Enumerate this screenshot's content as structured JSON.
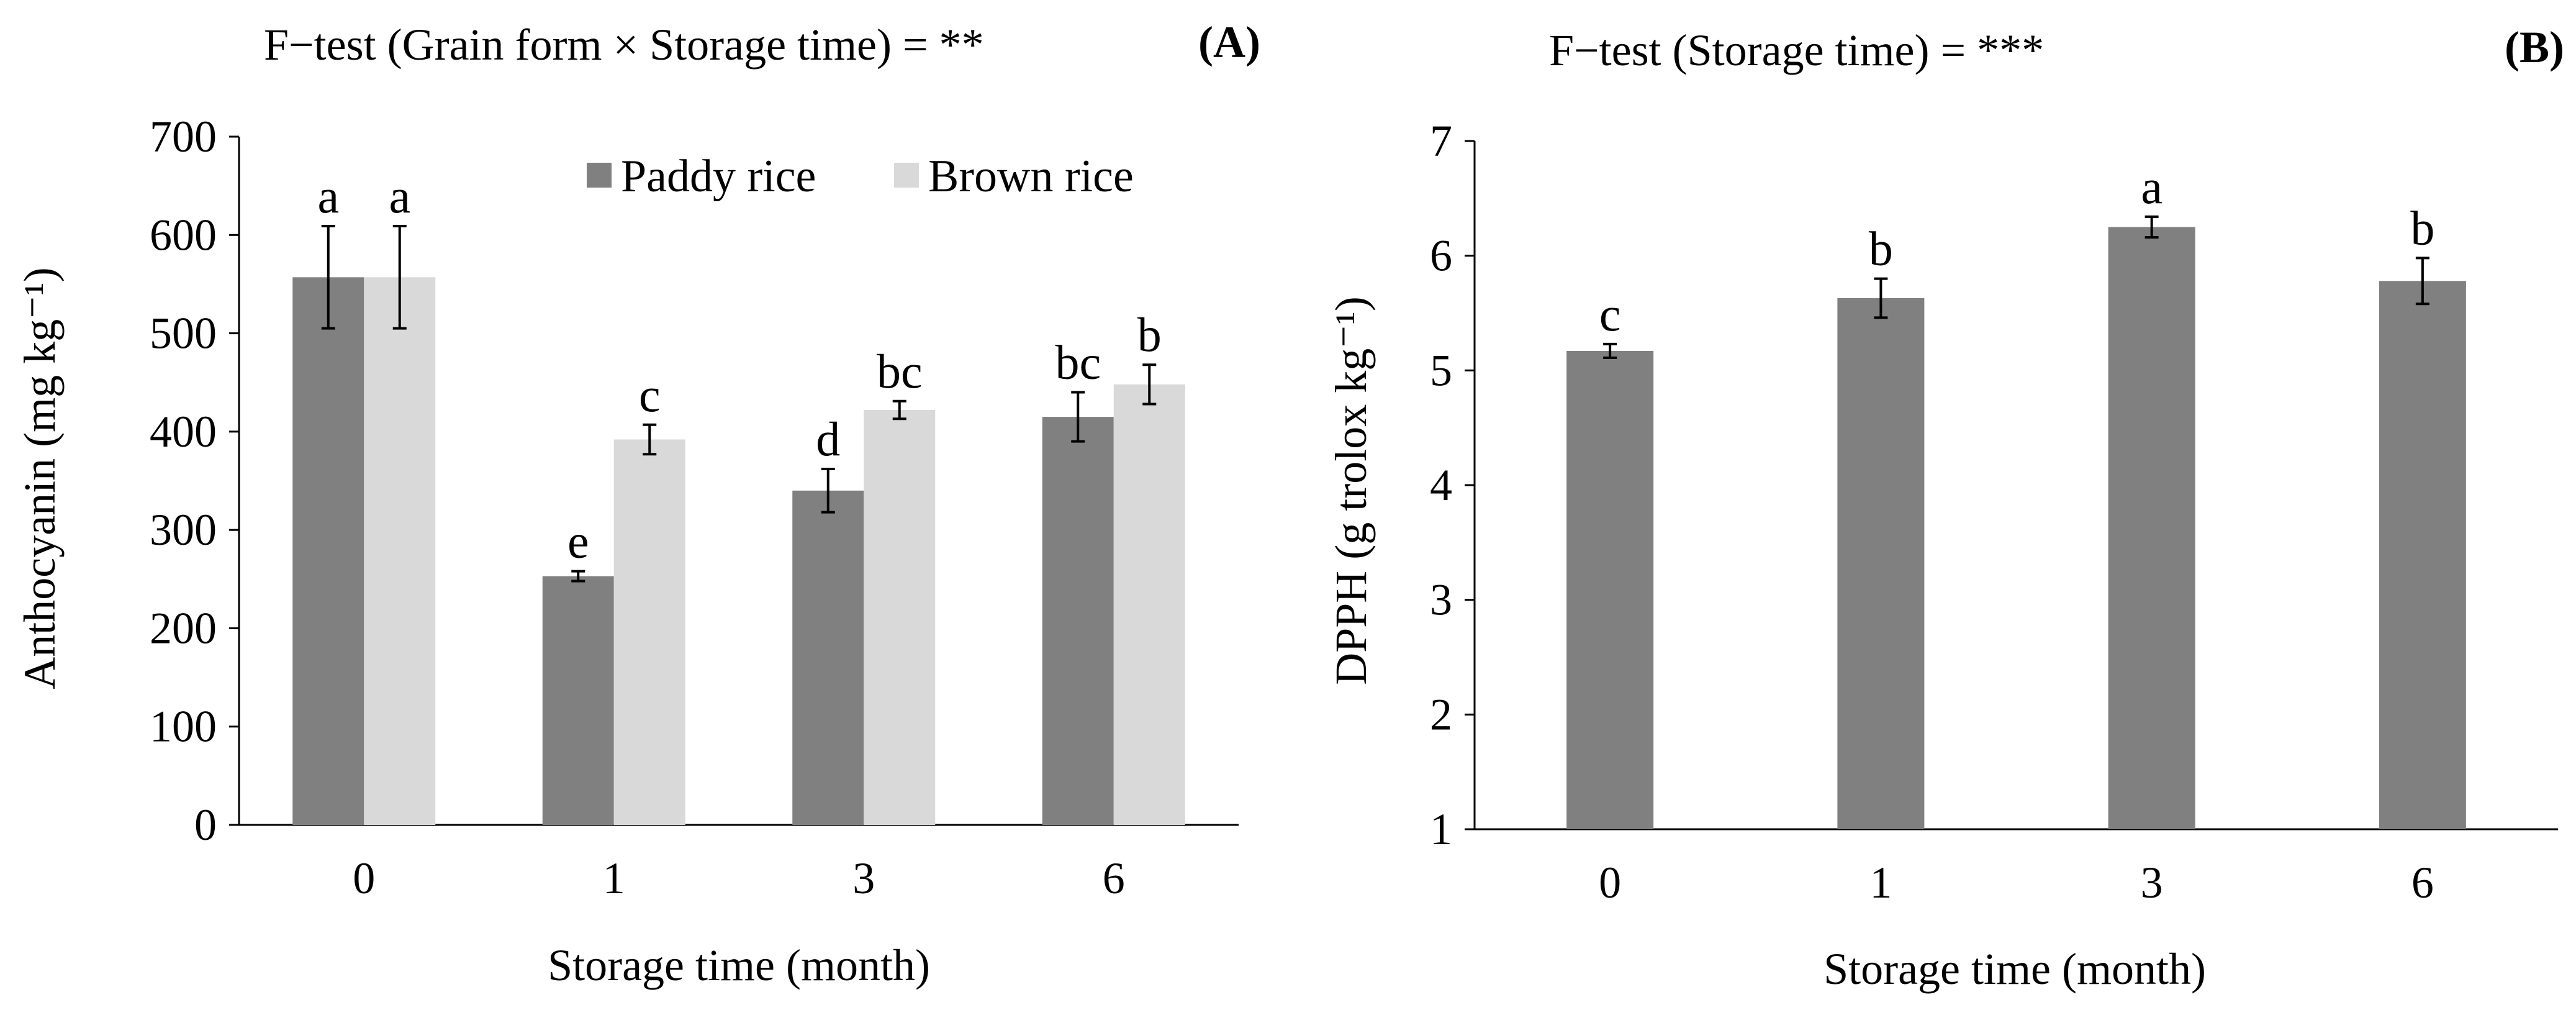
{
  "chart_data": [
    {
      "panel": "(A)",
      "type": "bar",
      "title": "F−test (Grain form × Storage time) = **",
      "xlabel": "Storage time (month)",
      "ylabel": "Anthocyanin (mg kg⁻¹)",
      "ylim": [
        0,
        700
      ],
      "yticks": [
        "0",
        "100",
        "200",
        "300",
        "400",
        "500",
        "600",
        "700"
      ],
      "categories": [
        "0",
        "1",
        "3",
        "6"
      ],
      "legend_position": "top-right",
      "series": [
        {
          "name": "Paddy rice",
          "color": "#808080",
          "values": [
            557,
            253,
            340,
            415
          ],
          "errors": [
            52,
            5,
            22,
            25
          ],
          "letters": [
            "a",
            "e",
            "d",
            "bc"
          ]
        },
        {
          "name": "Brown rice",
          "color": "#d9d9d9",
          "values": [
            557,
            392,
            422,
            448
          ],
          "errors": [
            52,
            15,
            9,
            20
          ],
          "letters": [
            "a",
            "c",
            "bc",
            "b"
          ]
        }
      ]
    },
    {
      "panel": "(B)",
      "type": "bar",
      "title": "F−test (Storage time) = ***",
      "xlabel": "Storage time (month)",
      "ylabel": "DPPH (g trolox kg⁻¹)",
      "ylim": [
        1,
        7
      ],
      "yticks": [
        "1",
        "2",
        "3",
        "4",
        "5",
        "6",
        "7"
      ],
      "categories": [
        "0",
        "1",
        "3",
        "6"
      ],
      "series": [
        {
          "name": "DPPH",
          "color": "#808080",
          "values": [
            5.17,
            5.63,
            6.25,
            5.78
          ],
          "errors": [
            0.06,
            0.17,
            0.09,
            0.2
          ],
          "letters": [
            "c",
            "b",
            "a",
            "b"
          ]
        }
      ]
    }
  ]
}
